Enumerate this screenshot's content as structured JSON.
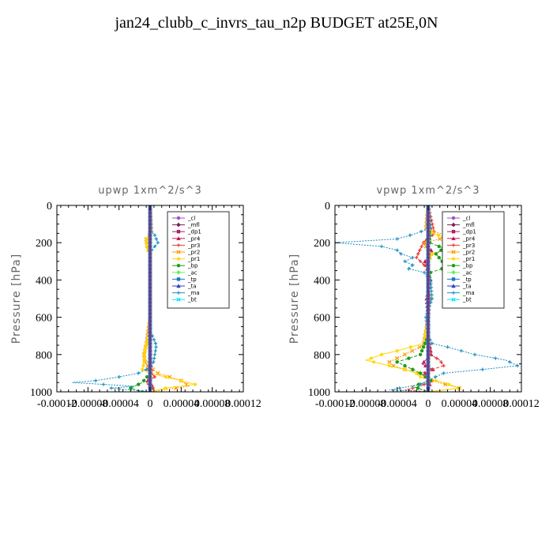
{
  "title": "jan24_clubb_c_invrs_tau_n2p  BUDGET at25E,0N",
  "chart_data": [
    {
      "type": "line",
      "title": "upwp   1xm^2/s^3",
      "ylabel": "Pressure [hPa]",
      "xlabel": "",
      "ylim": [
        1000,
        0
      ],
      "xlim": [
        -0.00012,
        0.00012
      ],
      "xtick_labels": [
        "-0.00012",
        "-0.00008",
        "-0.00004",
        "0",
        "0.00004",
        "0.00008",
        "0.00012"
      ],
      "ytick_labels": [
        "0",
        "200",
        "400",
        "600",
        "800",
        "1000"
      ],
      "grid": false,
      "legend_position": "top-right",
      "series": [
        {
          "name": "_cl",
          "color": "#9b4dca",
          "p": [
            0,
            200,
            400,
            600,
            800,
            1000
          ],
          "x": [
            0,
            0,
            0,
            0,
            0,
            0
          ]
        },
        {
          "name": "_mfl",
          "color": "#7a1f5c",
          "p": [
            0,
            200,
            400,
            600,
            800,
            1000
          ],
          "x": [
            0,
            0,
            0,
            0,
            0,
            0
          ]
        },
        {
          "name": "_dp1",
          "color": "#a8236d",
          "p": [
            0,
            200,
            400,
            600,
            800,
            1000
          ],
          "x": [
            0,
            0,
            0,
            0,
            0,
            0
          ]
        },
        {
          "name": "_pr4",
          "color": "#c2185b",
          "p": [
            0,
            200,
            400,
            600,
            800,
            900,
            940,
            970,
            1000
          ],
          "x": [
            0,
            0,
            0,
            0,
            0,
            2e-06,
            -3e-06,
            4e-06,
            0
          ]
        },
        {
          "name": "_pr3",
          "color": "#e53935",
          "p": [
            0,
            200,
            400,
            600,
            800,
            880,
            920,
            950,
            980,
            1000
          ],
          "x": [
            0,
            0,
            0,
            0,
            0,
            -3e-06,
            6e-06,
            -5e-06,
            4e-06,
            0
          ]
        },
        {
          "name": "_pr2",
          "color": "#ff9800",
          "p": [
            0,
            150,
            180,
            200,
            230,
            260,
            400,
            600,
            750,
            800,
            850,
            900,
            940,
            970,
            1000
          ],
          "x": [
            0,
            1e-06,
            -5e-06,
            -4e-06,
            -3e-06,
            0,
            0,
            0,
            -5e-06,
            -8e-06,
            -6e-06,
            1e-05,
            4e-05,
            5e-05,
            0
          ]
        },
        {
          "name": "_pr1",
          "color": "#ffd600",
          "p": [
            0,
            150,
            180,
            200,
            230,
            260,
            400,
            600,
            700,
            750,
            800,
            850,
            880,
            900,
            920,
            940,
            960,
            980,
            1000
          ],
          "x": [
            0,
            1e-06,
            -4e-06,
            -5e-06,
            -4e-06,
            0,
            0,
            0,
            0,
            -6e-06,
            -7e-06,
            -8e-06,
            -1e-05,
            0,
            2e-05,
            4e-05,
            5.8e-05,
            2e-05,
            0
          ]
        },
        {
          "name": "_bp",
          "color": "#1a9e1a",
          "p": [
            0,
            200,
            400,
            600,
            800,
            900,
            950,
            980,
            1000
          ],
          "x": [
            0,
            0,
            0,
            0,
            0,
            0,
            -1e-05,
            -2.5e-05,
            -1e-05
          ]
        },
        {
          "name": "_ac",
          "color": "#66ee66",
          "p": [
            0,
            200,
            400,
            600,
            800,
            1000
          ],
          "x": [
            0,
            0,
            0,
            0,
            0,
            0
          ]
        },
        {
          "name": "_tp",
          "color": "#1976d2",
          "p": [
            0,
            200,
            400,
            600,
            800,
            1000
          ],
          "x": [
            0,
            0,
            0,
            0,
            0,
            0
          ]
        },
        {
          "name": "_ta",
          "color": "#303fbf",
          "p": [
            0,
            200,
            400,
            600,
            800,
            1000
          ],
          "x": [
            0,
            0,
            0,
            0,
            0,
            0
          ]
        },
        {
          "name": "_ma",
          "color": "#1f8fbf",
          "p": [
            0,
            140,
            160,
            180,
            200,
            220,
            240,
            260,
            400,
            600,
            680,
            700,
            750,
            800,
            850,
            880,
            900,
            920,
            940,
            950,
            960,
            970,
            980,
            1000
          ],
          "x": [
            0,
            2e-06,
            6e-06,
            8e-06,
            1e-05,
            6e-06,
            2e-06,
            0,
            0,
            0,
            0,
            3e-06,
            8e-06,
            6e-06,
            4e-06,
            -5e-06,
            -1.5e-05,
            -4e-05,
            -7e-05,
            -0.0001,
            -6e-05,
            -2e-05,
            -5e-05,
            0
          ]
        },
        {
          "name": "_bt",
          "color": "#00e5ee",
          "p": [
            0,
            200,
            400,
            600,
            800,
            1000
          ],
          "x": [
            0,
            0,
            0,
            0,
            0,
            0
          ]
        }
      ]
    },
    {
      "type": "line",
      "title": "vpwp   1xm^2/s^3",
      "ylabel": "Pressure [hPa]",
      "xlabel": "",
      "ylim": [
        1000,
        0
      ],
      "xlim": [
        -0.00012,
        0.00012
      ],
      "xtick_labels": [
        "-0.00012",
        "-0.00008",
        "-0.00004",
        "0",
        "0.00004",
        "0.00008",
        "0.00012"
      ],
      "ytick_labels": [
        "0",
        "200",
        "400",
        "600",
        "800",
        "1000"
      ],
      "grid": false,
      "legend_position": "top-right",
      "series": [
        {
          "name": "_cl",
          "color": "#9b4dca",
          "p": [
            0,
            200,
            400,
            600,
            800,
            1000
          ],
          "x": [
            0,
            0,
            0,
            0,
            0,
            0
          ]
        },
        {
          "name": "_mfl",
          "color": "#7a1f5c",
          "p": [
            0,
            200,
            400,
            600,
            800,
            1000
          ],
          "x": [
            0,
            0,
            0,
            0,
            0,
            0
          ]
        },
        {
          "name": "_dp1",
          "color": "#a8236d",
          "p": [
            0,
            200,
            400,
            600,
            800,
            1000
          ],
          "x": [
            0,
            0,
            0,
            0,
            0,
            0
          ]
        },
        {
          "name": "_pr4",
          "color": "#c2185b",
          "p": [
            0,
            150,
            200,
            250,
            300,
            400,
            500,
            600,
            700,
            800,
            850,
            880,
            900,
            950,
            980,
            1000
          ],
          "x": [
            0,
            3e-06,
            -5e-06,
            6e-06,
            -4e-06,
            3e-06,
            -2e-06,
            0,
            0,
            4e-06,
            -8e-06,
            6e-06,
            -4e-06,
            3e-06,
            0,
            0
          ]
        },
        {
          "name": "_pr3",
          "color": "#e53935",
          "p": [
            0,
            150,
            200,
            250,
            280,
            300,
            350,
            400,
            500,
            600,
            700,
            800,
            830,
            860,
            880,
            900,
            940,
            970,
            990,
            1000
          ],
          "x": [
            0,
            8e-06,
            -6e-06,
            -1.2e-05,
            -1.5e-05,
            -1e-05,
            2e-06,
            0,
            3e-06,
            0,
            0,
            3e-06,
            1.5e-05,
            2e-05,
            5e-06,
            -1e-05,
            5e-06,
            -1e-05,
            -3e-05,
            0
          ]
        },
        {
          "name": "_pr2",
          "color": "#ff9800",
          "p": [
            0,
            130,
            160,
            180,
            200,
            220,
            260,
            300,
            400,
            600,
            750,
            800,
            840,
            860,
            880,
            900,
            940,
            980,
            1000
          ],
          "x": [
            0,
            -3e-06,
            2.5e-05,
            1.5e-05,
            -5e-06,
            -3e-06,
            4e-06,
            0,
            0,
            0,
            -6e-06,
            -3e-05,
            -5e-05,
            -4.5e-05,
            -3e-05,
            -1.2e-05,
            4e-06,
            4e-05,
            0
          ]
        },
        {
          "name": "_pr1",
          "color": "#ffd600",
          "p": [
            0,
            120,
            150,
            180,
            200,
            230,
            260,
            300,
            400,
            600,
            740,
            780,
            800,
            830,
            860,
            880,
            900,
            920,
            950,
            980,
            1000
          ],
          "x": [
            0,
            2e-06,
            5e-06,
            3e-05,
            4.5e-05,
            3e-05,
            5e-06,
            0,
            0,
            0,
            -5e-06,
            -4e-05,
            -6e-05,
            -8e-05,
            -5e-05,
            -3e-05,
            -1.5e-05,
            -1e-05,
            2e-05,
            4e-05,
            0
          ]
        },
        {
          "name": "_bp",
          "color": "#1a9e1a",
          "p": [
            0,
            200,
            230,
            260,
            300,
            330,
            360,
            400,
            500,
            600,
            700,
            800,
            840,
            870,
            900,
            940,
            970,
            1000
          ],
          "x": [
            0,
            2e-06,
            2e-05,
            1e-05,
            1.8e-05,
            2.5e-05,
            3e-06,
            0,
            0,
            0,
            0,
            -1e-05,
            -4e-05,
            -2.5e-05,
            -1e-05,
            3e-06,
            -2e-05,
            0
          ]
        },
        {
          "name": "_ac",
          "color": "#66ee66",
          "p": [
            0,
            200,
            400,
            600,
            800,
            1000
          ],
          "x": [
            0,
            0,
            0,
            0,
            0,
            0
          ]
        },
        {
          "name": "_tp",
          "color": "#1976d2",
          "p": [
            0,
            200,
            400,
            600,
            800,
            1000
          ],
          "x": [
            0,
            0,
            0,
            0,
            0,
            0
          ]
        },
        {
          "name": "_ta",
          "color": "#303fbf",
          "p": [
            0,
            200,
            400,
            600,
            800,
            1000
          ],
          "x": [
            0,
            0,
            0,
            0,
            0,
            0
          ]
        },
        {
          "name": "_ma",
          "color": "#1f8fbf",
          "p": [
            0,
            120,
            150,
            180,
            200,
            220,
            240,
            260,
            280,
            300,
            320,
            340,
            360,
            400,
            500,
            600,
            700,
            740,
            760,
            800,
            830,
            860,
            880,
            900,
            930,
            960,
            990,
            1000
          ],
          "x": [
            0,
            3e-06,
            -1.5e-05,
            -4e-05,
            -0.00012,
            -6e-05,
            -4e-05,
            -3.5e-05,
            -2e-05,
            -3e-05,
            -2e-05,
            -2.5e-05,
            -5e-06,
            3e-06,
            5e-06,
            -3e-06,
            0,
            5e-06,
            2.5e-05,
            6e-05,
            0.0001,
            0.000115,
            7e-05,
            2e-05,
            4e-06,
            -1e-05,
            -5e-05,
            0
          ]
        },
        {
          "name": "_bt",
          "color": "#00e5ee",
          "p": [
            0,
            200,
            400,
            600,
            800,
            1000
          ],
          "x": [
            0,
            0,
            0,
            0,
            0,
            0
          ]
        }
      ]
    }
  ]
}
